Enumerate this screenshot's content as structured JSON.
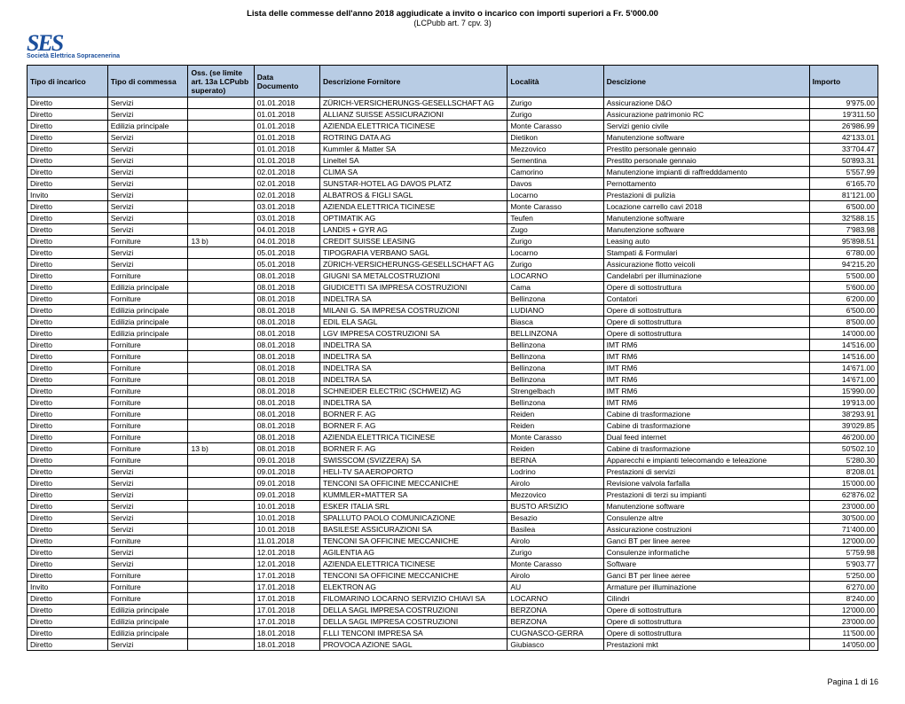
{
  "header": {
    "title": "Lista delle commesse dell'anno 2018 aggiudicate a invito o incarico con importi superiori a Fr. 5'000.00",
    "subtitle": "(LCPubb art. 7 cpv. 3)",
    "logo_text": "SES",
    "logo_subtext": "Società Elettrica Sopracenerina"
  },
  "columns": [
    "Tipo di incarico",
    "Tipo di commessa",
    "Oss. (se limite art. 13a LCPubb superato)",
    "Data Documento",
    "Descrizione Fornitore",
    "Località",
    "Descizione",
    "Importo"
  ],
  "rows": [
    [
      "Diretto",
      "Servizi",
      "",
      "01.01.2018",
      "ZÜRICH-VERSICHERUNGS-GESELLSCHAFT AG",
      "Zurigo",
      "Assicurazione D&O",
      "9'975.00"
    ],
    [
      "Diretto",
      "Servizi",
      "",
      "01.01.2018",
      "ALLIANZ SUISSE ASSICURAZIONI",
      "Zurigo",
      "Assicurazione patrimonio RC",
      "19'311.50"
    ],
    [
      "Diretto",
      "Edilizia principale",
      "",
      "01.01.2018",
      "AZIENDA ELETTRICA TICINESE",
      "Monte Carasso",
      "Servizi genio civile",
      "26'986.99"
    ],
    [
      "Diretto",
      "Servizi",
      "",
      "01.01.2018",
      "ROTRING DATA AG",
      "Dietikon",
      "Manutenzione software",
      "42'133.01"
    ],
    [
      "Diretto",
      "Servizi",
      "",
      "01.01.2018",
      "Kummler & Matter SA",
      "Mezzovico",
      "Prestito personale gennaio",
      "33'704.47"
    ],
    [
      "Diretto",
      "Servizi",
      "",
      "01.01.2018",
      "Lineltel SA",
      "Sementina",
      "Prestito personale gennaio",
      "50'893.31"
    ],
    [
      "Diretto",
      "Servizi",
      "",
      "02.01.2018",
      "CLIMA SA",
      "Camorino",
      "Manutenzione impianti di raffredddamento",
      "5'557.99"
    ],
    [
      "Diretto",
      "Servizi",
      "",
      "02.01.2018",
      "SUNSTAR-HOTEL AG DAVOS PLATZ",
      "Davos",
      "Pernottamento",
      "6'165.70"
    ],
    [
      "Invito",
      "Servizi",
      "",
      "02.01.2018",
      "ALBATROS & FIGLI SAGL",
      "Locarno",
      "Prestazioni di pulizia",
      "81'121.00"
    ],
    [
      "Diretto",
      "Servizi",
      "",
      "03.01.2018",
      "AZIENDA ELETTRICA TICINESE",
      "Monte Carasso",
      "Locazione carrello cavi 2018",
      "6'500.00"
    ],
    [
      "Diretto",
      "Servizi",
      "",
      "03.01.2018",
      "OPTIMATIK AG",
      "Teufen",
      "Manutenzione software",
      "32'588.15"
    ],
    [
      "Diretto",
      "Servizi",
      "",
      "04.01.2018",
      "LANDIS + GYR AG",
      "Zugo",
      "Manutenzione software",
      "7'983.98"
    ],
    [
      "Diretto",
      "Forniture",
      "13 b)",
      "04.01.2018",
      "CREDIT SUISSE LEASING",
      "Zurigo",
      "Leasing auto",
      "95'898.51"
    ],
    [
      "Diretto",
      "Servizi",
      "",
      "05.01.2018",
      "TIPOGRAFIA VERBANO SAGL",
      "Locarno",
      "Stampati & Formulari",
      "6'780.00"
    ],
    [
      "Diretto",
      "Servizi",
      "",
      "05.01.2018",
      "ZÜRICH-VERSICHERUNGS-GESELLSCHAFT AG",
      "Zurigo",
      "Assicurazione flotto veicoli",
      "94'215.20"
    ],
    [
      "Diretto",
      "Forniture",
      "",
      "08.01.2018",
      "GIUGNI SA METALCOSTRUZIONI",
      "LOCARNO",
      "Candelabri per illuminazione",
      "5'500.00"
    ],
    [
      "Diretto",
      "Edilizia principale",
      "",
      "08.01.2018",
      "GIUDICETTI SA IMPRESA COSTRUZIONI",
      "Cama",
      "Opere di sottostruttura",
      "5'600.00"
    ],
    [
      "Diretto",
      "Forniture",
      "",
      "08.01.2018",
      "INDELTRA SA",
      "Bellinzona",
      "Contatori",
      "6'200.00"
    ],
    [
      "Diretto",
      "Edilizia principale",
      "",
      "08.01.2018",
      "MILANI G. SA IMPRESA COSTRUZIONI",
      "LUDIANO",
      "Opere di sottostruttura",
      "6'500.00"
    ],
    [
      "Diretto",
      "Edilizia principale",
      "",
      "08.01.2018",
      "EDIL ELA SAGL",
      "Biasca",
      "Opere di sottostruttura",
      "8'500.00"
    ],
    [
      "Diretto",
      "Edilizia principale",
      "",
      "08.01.2018",
      "LGV IMPRESA COSTRUZIONI SA",
      "BELLINZONA",
      "Opere di sottostruttura",
      "14'000.00"
    ],
    [
      "Diretto",
      "Forniture",
      "",
      "08.01.2018",
      "INDELTRA SA",
      "Bellinzona",
      "IMT RM6",
      "14'516.00"
    ],
    [
      "Diretto",
      "Forniture",
      "",
      "08.01.2018",
      "INDELTRA SA",
      "Bellinzona",
      "IMT RM6",
      "14'516.00"
    ],
    [
      "Diretto",
      "Forniture",
      "",
      "08.01.2018",
      "INDELTRA SA",
      "Bellinzona",
      "IMT RM6",
      "14'671.00"
    ],
    [
      "Diretto",
      "Forniture",
      "",
      "08.01.2018",
      "INDELTRA SA",
      "Bellinzona",
      "IMT RM6",
      "14'671.00"
    ],
    [
      "Diretto",
      "Forniture",
      "",
      "08.01.2018",
      "SCHNEIDER ELECTRIC (SCHWEIZ) AG",
      "Strengelbach",
      "IMT RM6",
      "15'990.00"
    ],
    [
      "Diretto",
      "Forniture",
      "",
      "08.01.2018",
      "INDELTRA SA",
      "Bellinzona",
      "IMT RM6",
      "19'913.00"
    ],
    [
      "Diretto",
      "Forniture",
      "",
      "08.01.2018",
      "BORNER F. AG",
      "Reiden",
      "Cabine di trasformazione",
      "38'293.91"
    ],
    [
      "Diretto",
      "Forniture",
      "",
      "08.01.2018",
      "BORNER F. AG",
      "Reiden",
      "Cabine di trasformazione",
      "39'029.85"
    ],
    [
      "Diretto",
      "Forniture",
      "",
      "08.01.2018",
      "AZIENDA ELETTRICA TICINESE",
      "Monte Carasso",
      "Dual feed internet",
      "46'200.00"
    ],
    [
      "Diretto",
      "Forniture",
      "13 b)",
      "08.01.2018",
      "BORNER F. AG",
      "Reiden",
      "Cabine di trasformazione",
      "50'502.10"
    ],
    [
      "Diretto",
      "Forniture",
      "",
      "09.01.2018",
      "SWISSCOM (SVIZZERA) SA",
      "BERNA",
      "Apparecchi e impianti telecomando e teleazione",
      "5'280.30"
    ],
    [
      "Diretto",
      "Servizi",
      "",
      "09.01.2018",
      "HELI-TV SA AEROPORTO",
      "Lodrino",
      "Prestazioni di servizi",
      "8'208.01"
    ],
    [
      "Diretto",
      "Servizi",
      "",
      "09.01.2018",
      "TENCONI SA OFFICINE MECCANICHE",
      "Airolo",
      "Revisione valvola farfalla",
      "15'000.00"
    ],
    [
      "Diretto",
      "Servizi",
      "",
      "09.01.2018",
      "KUMMLER+MATTER SA",
      "Mezzovico",
      "Prestazioni di terzi su impianti",
      "62'876.02"
    ],
    [
      "Diretto",
      "Servizi",
      "",
      "10.01.2018",
      "ESKER ITALIA SRL",
      "BUSTO ARSIZIO",
      "Manutenzione software",
      "23'000.00"
    ],
    [
      "Diretto",
      "Servizi",
      "",
      "10.01.2018",
      "SPALLUTO PAOLO COMUNICAZIONE",
      "Besazio",
      "Consulenze altre",
      "30'500.00"
    ],
    [
      "Diretto",
      "Servizi",
      "",
      "10.01.2018",
      "BASILESE ASSICURAZIONI SA",
      "Basilea",
      "Assicurazione costruzioni",
      "71'400.00"
    ],
    [
      "Diretto",
      "Forniture",
      "",
      "11.01.2018",
      "TENCONI SA OFFICINE MECCANICHE",
      "Airolo",
      "Ganci BT per linee aeree",
      "12'000.00"
    ],
    [
      "Diretto",
      "Servizi",
      "",
      "12.01.2018",
      "AGILENTIA AG",
      "Zurigo",
      "Consulenze informatiche",
      "5'759.98"
    ],
    [
      "Diretto",
      "Servizi",
      "",
      "12.01.2018",
      "AZIENDA ELETTRICA TICINESE",
      "Monte Carasso",
      "Software",
      "5'903.77"
    ],
    [
      "Diretto",
      "Forniture",
      "",
      "17.01.2018",
      "TENCONI SA OFFICINE MECCANICHE",
      "Airolo",
      "Ganci BT per linee aeree",
      "5'250.00"
    ],
    [
      "Invito",
      "Forniture",
      "",
      "17.01.2018",
      "ELEKTRON AG",
      "AU",
      "Armature per illuminazione",
      "6'270.00"
    ],
    [
      "Diretto",
      "Forniture",
      "",
      "17.01.2018",
      "FILOMARINO LOCARNO SERVIZIO CHIAVI SA",
      "LOCARNO",
      "Cilindri",
      "8'240.00"
    ],
    [
      "Diretto",
      "Edilizia principale",
      "",
      "17.01.2018",
      "DELLA SAGL IMPRESA COSTRUZIONI",
      "BERZONA",
      "Opere di sottostruttura",
      "12'000.00"
    ],
    [
      "Diretto",
      "Edilizia principale",
      "",
      "17.01.2018",
      "DELLA SAGL IMPRESA COSTRUZIONI",
      "BERZONA",
      "Opere di sottostruttura",
      "23'000.00"
    ],
    [
      "Diretto",
      "Edilizia principale",
      "",
      "18.01.2018",
      "F.LLI TENCONI IMPRESA SA",
      "CUGNASCO-GERRA",
      "Opere di sottostruttura",
      "11'500.00"
    ],
    [
      "Diretto",
      "Servizi",
      "",
      "18.01.2018",
      "PROVOCA AZIONE SAGL",
      "Giubiasco",
      "Prestazioni mkt",
      "14'050.00"
    ]
  ],
  "footer": {
    "page_text": "Pagina 1 di 16"
  },
  "style": {
    "header_bg": "#b8cce4",
    "border_color": "#000000",
    "logo_color": "#1b4f9c"
  }
}
